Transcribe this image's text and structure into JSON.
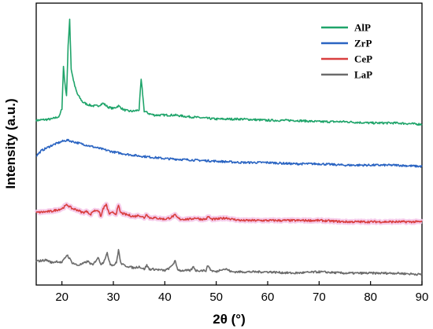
{
  "chart_data": {
    "type": "line",
    "title": "",
    "xlabel": "2θ (°)",
    "ylabel": "Intensity (a.u.)",
    "xlim": [
      15,
      90
    ],
    "y_ticks_shown": false,
    "grid": false,
    "legend_position": "top-right",
    "x_ticks": [
      20,
      30,
      40,
      50,
      60,
      70,
      80,
      90
    ],
    "series": [
      {
        "name": "AlP",
        "color": "#1fa46a",
        "x": [
          15,
          18,
          19.5,
          20,
          20.3,
          20.6,
          20.9,
          21.2,
          21.5,
          21.8,
          22.1,
          22.5,
          23,
          24,
          25,
          26,
          27,
          28,
          29,
          30,
          31,
          32,
          33,
          34,
          35,
          35.4,
          35.7,
          36,
          36.5,
          37,
          38,
          40,
          42,
          44,
          47,
          50,
          55,
          60,
          65,
          70,
          75,
          80,
          85,
          90
        ],
        "y": [
          3.5,
          3.6,
          3.8,
          4.4,
          7.6,
          6.2,
          5.4,
          9.1,
          11.2,
          7.4,
          6.8,
          6.1,
          5.5,
          4.9,
          4.7,
          4.6,
          4.6,
          4.8,
          4.5,
          4.4,
          4.6,
          4.3,
          4.2,
          4.2,
          4.3,
          6.6,
          5.5,
          4.2,
          4.1,
          4.0,
          3.9,
          3.9,
          3.9,
          3.8,
          3.7,
          3.6,
          3.6,
          3.5,
          3.5,
          3.4,
          3.4,
          3.3,
          3.3,
          3.2
        ]
      },
      {
        "name": "ZrP",
        "color": "#2a64c2",
        "x": [
          15,
          16,
          18,
          20,
          21,
          22,
          23,
          25,
          28,
          30,
          33,
          35,
          40,
          45,
          50,
          55,
          60,
          65,
          70,
          75,
          80,
          85,
          90
        ],
        "y": [
          0.8,
          1.2,
          1.6,
          1.9,
          2.0,
          1.9,
          1.8,
          1.6,
          1.3,
          1.1,
          0.9,
          0.8,
          0.6,
          0.5,
          0.4,
          0.3,
          0.3,
          0.2,
          0.2,
          0.1,
          0.1,
          0.1,
          0.0
        ]
      },
      {
        "name": "CeP",
        "color": "#d93f3f",
        "x": [
          15,
          18,
          20,
          21,
          22,
          23,
          24,
          25,
          25.5,
          26,
          27,
          27.6,
          28,
          28.6,
          29.2,
          30,
          30.5,
          31,
          31.4,
          32,
          33,
          34,
          35,
          36,
          36.5,
          37,
          38,
          40,
          41,
          42,
          42.5,
          43,
          45,
          46,
          47,
          48,
          48.5,
          49,
          50,
          52,
          53,
          55,
          60,
          65,
          70,
          75,
          80,
          85,
          90
        ],
        "y": [
          -3.5,
          -3.4,
          -3.2,
          -2.9,
          -3.2,
          -3.3,
          -3.5,
          -3.4,
          -3.7,
          -3.4,
          -3.3,
          -3.8,
          -3.2,
          -2.9,
          -3.6,
          -3.5,
          -3.6,
          -3.0,
          -3.5,
          -3.6,
          -3.7,
          -3.8,
          -3.7,
          -3.9,
          -3.6,
          -3.9,
          -3.9,
          -4.0,
          -3.9,
          -3.7,
          -3.9,
          -4.0,
          -4.0,
          -3.9,
          -4.0,
          -4.0,
          -3.8,
          -4.0,
          -4.0,
          -3.9,
          -4.0,
          -4.1,
          -4.1,
          -4.1,
          -4.1,
          -4.2,
          -4.2,
          -4.2,
          -4.2
        ]
      },
      {
        "name": "LaP",
        "color": "#6b6b6b",
        "x": [
          15,
          17,
          18,
          19,
          20,
          21,
          22,
          23,
          24,
          25,
          26,
          27,
          27.6,
          28,
          28.8,
          29.4,
          30,
          30.6,
          31,
          31.4,
          32,
          33,
          34,
          35,
          36,
          36.5,
          37,
          38,
          40,
          41,
          42,
          42.5,
          43,
          45,
          45.6,
          46,
          47,
          48,
          48.4,
          49,
          50,
          51,
          52,
          53,
          55,
          60,
          65,
          70,
          75,
          80,
          85,
          90
        ],
        "y": [
          -7.2,
          -7.1,
          -7.3,
          -7.2,
          -7.3,
          -6.7,
          -7.3,
          -7.5,
          -7.4,
          -7.2,
          -7.5,
          -6.9,
          -7.4,
          -7.3,
          -6.6,
          -7.4,
          -7.5,
          -7.3,
          -6.3,
          -7.3,
          -7.5,
          -7.6,
          -7.7,
          -7.6,
          -7.8,
          -7.5,
          -7.8,
          -7.8,
          -7.9,
          -7.7,
          -7.2,
          -7.8,
          -7.9,
          -7.9,
          -7.6,
          -7.9,
          -7.9,
          -7.9,
          -7.5,
          -7.9,
          -8.0,
          -7.8,
          -7.8,
          -8.0,
          -8.0,
          -8.0,
          -8.1,
          -8.0,
          -8.1,
          -8.1,
          -8.1,
          -8.2
        ]
      }
    ]
  }
}
